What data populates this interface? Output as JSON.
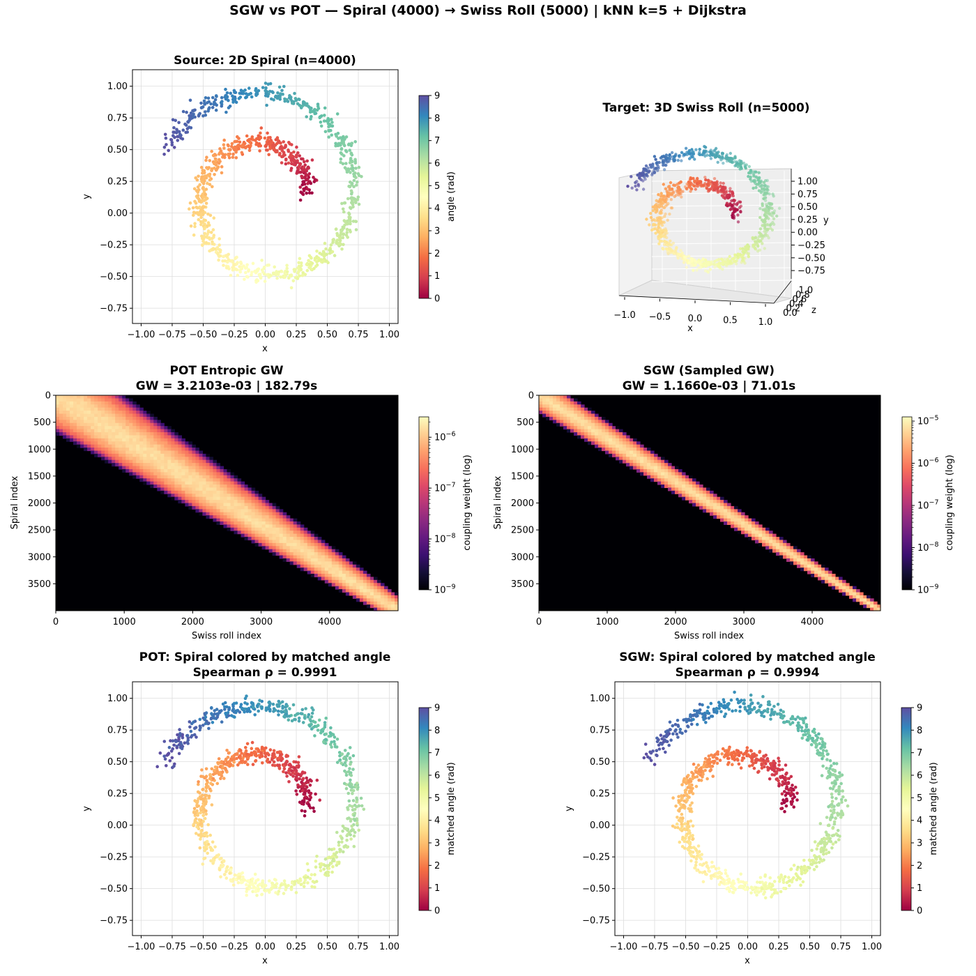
{
  "figure": {
    "suptitle": "SGW vs POT  —  Spiral (4000) → Swiss Roll (5000)  |  kNN k=5 + Dijkstra"
  },
  "colors": {
    "background": "#ffffff",
    "grid": "#dddddd",
    "heatmap_bg": "#000004"
  },
  "chart_data": [
    {
      "id": "source",
      "type": "scatter",
      "title": "Source: 2D Spiral  (n=4000)",
      "xlabel": "x",
      "ylabel": "y",
      "xlim": [
        -1.07,
        1.07
      ],
      "ylim": [
        -0.87,
        1.13
      ],
      "xticks": [
        -1.0,
        -0.75,
        -0.5,
        -0.25,
        0.0,
        0.25,
        0.5,
        0.75,
        1.0
      ],
      "xtick_labels": [
        "−1.00",
        "−0.75",
        "−0.50",
        "−0.25",
        "0.00",
        "0.25",
        "0.50",
        "0.75",
        "1.00"
      ],
      "yticks": [
        -0.75,
        -0.5,
        -0.25,
        0.0,
        0.25,
        0.5,
        0.75,
        1.0
      ],
      "ytick_labels": [
        "−0.75",
        "−0.50",
        "−0.25",
        "0.00",
        "0.25",
        "0.50",
        "0.75",
        "1.00"
      ],
      "spiral": {
        "n": 4000,
        "angle_range": [
          0,
          9
        ],
        "center": [
          0.0,
          0.13
        ],
        "radius_start": 0.33,
        "radius_end": 0.88,
        "noise": 0.035
      },
      "colorbar": {
        "label": "angle (rad)",
        "range": [
          0,
          9
        ],
        "ticks": [
          "0",
          "1",
          "2",
          "3",
          "4",
          "5",
          "6",
          "7",
          "8",
          "9"
        ],
        "cmap": "Spectral"
      }
    },
    {
      "id": "target",
      "type": "scatter3d",
      "title": "Target: 3D Swiss Roll  (n=5000)",
      "xlabel": "x",
      "ylabel": "y",
      "zlabel": "z",
      "xtick_labels": [
        "−1.0",
        "−0.5",
        "0.0",
        "0.5",
        "1.0"
      ],
      "ytick_labels": [
        "1.00",
        "0.75",
        "0.50",
        "0.25",
        "0.00",
        "−0.25",
        "−0.50",
        "−0.75"
      ],
      "ztick_labels": [
        "0.0",
        "0.2",
        "0.4",
        "0.6",
        "0.8",
        "1.0"
      ],
      "spiral": {
        "n": 5000,
        "angle_range": [
          0,
          9
        ],
        "cmap": "Spectral"
      }
    },
    {
      "id": "pot_heat",
      "type": "heatmap",
      "title_line1": "POT Entropic GW",
      "title_line2": "GW = 3.2103e-03  |  182.79s",
      "xlabel": "Swiss roll index",
      "ylabel": "Spiral index",
      "xlim": [
        0,
        5000
      ],
      "ylim": [
        0,
        4000
      ],
      "xticks": [
        0,
        1000,
        2000,
        3000,
        4000
      ],
      "yticks": [
        0,
        500,
        1000,
        1500,
        2000,
        2500,
        3000,
        3500
      ],
      "band": {
        "width_start": 0.16,
        "width_end": 0.05
      },
      "colorbar": {
        "label": "coupling weight (log)",
        "log_range": [
          -9,
          -5.6
        ],
        "ticks_exp": [
          "−9",
          "−8",
          "−7",
          "−6"
        ],
        "cmap": "magma"
      }
    },
    {
      "id": "sgw_heat",
      "type": "heatmap",
      "title_line1": "SGW (Sampled GW)",
      "title_line2": "GW = 1.1660e-03  |  71.01s",
      "xlabel": "Swiss roll index",
      "ylabel": "Spiral index",
      "xlim": [
        0,
        5000
      ],
      "ylim": [
        0,
        4000
      ],
      "xticks": [
        0,
        1000,
        2000,
        3000,
        4000
      ],
      "yticks": [
        0,
        500,
        1000,
        1500,
        2000,
        2500,
        3000,
        3500
      ],
      "band": {
        "width_start": 0.07,
        "width_end": 0.02
      },
      "colorbar": {
        "label": "coupling weight (log)",
        "log_range": [
          -9,
          -4.9
        ],
        "ticks_exp": [
          "−9",
          "−8",
          "−7",
          "−6",
          "−5"
        ],
        "cmap": "magma"
      }
    },
    {
      "id": "pot_match",
      "type": "scatter",
      "title_line1": "POT: Spiral colored by matched angle",
      "title_line2": "Spearman ρ = 0.9991",
      "xlabel": "x",
      "ylabel": "y",
      "xlim": [
        -1.07,
        1.07
      ],
      "ylim": [
        -0.87,
        1.13
      ],
      "xticks": [
        -1.0,
        -0.75,
        -0.5,
        -0.25,
        0.0,
        0.25,
        0.5,
        0.75,
        1.0
      ],
      "xtick_labels": [
        "−1.00",
        "−0.75",
        "−0.50",
        "−0.25",
        "0.00",
        "0.25",
        "0.50",
        "0.75",
        "1.00"
      ],
      "yticks": [
        -0.75,
        -0.5,
        -0.25,
        0.0,
        0.25,
        0.5,
        0.75,
        1.0
      ],
      "ytick_labels": [
        "−0.75",
        "−0.50",
        "−0.25",
        "0.00",
        "0.25",
        "0.50",
        "0.75",
        "1.00"
      ],
      "spiral": {
        "n": 4000,
        "angle_range": [
          0,
          9
        ],
        "center": [
          0.0,
          0.13
        ],
        "radius_start": 0.33,
        "radius_end": 0.88,
        "noise": 0.035
      },
      "colorbar": {
        "label": "matched angle (rad)",
        "range": [
          0,
          9
        ],
        "ticks": [
          "0",
          "1",
          "2",
          "3",
          "4",
          "5",
          "6",
          "7",
          "8",
          "9"
        ],
        "cmap": "Spectral"
      }
    },
    {
      "id": "sgw_match",
      "type": "scatter",
      "title_line1": "SGW: Spiral colored by matched angle",
      "title_line2": "Spearman ρ = 0.9994",
      "xlabel": "x",
      "ylabel": "y",
      "xlim": [
        -1.07,
        1.07
      ],
      "ylim": [
        -0.87,
        1.13
      ],
      "xticks": [
        -1.0,
        -0.75,
        -0.5,
        -0.25,
        0.0,
        0.25,
        0.5,
        0.75,
        1.0
      ],
      "xtick_labels": [
        "−1.00",
        "−0.75",
        "−0.50",
        "−0.25",
        "0.00",
        "0.25",
        "0.50",
        "0.75",
        "1.00"
      ],
      "yticks": [
        -0.75,
        -0.5,
        -0.25,
        0.0,
        0.25,
        0.5,
        0.75,
        1.0
      ],
      "ytick_labels": [
        "−0.75",
        "−0.50",
        "−0.25",
        "0.00",
        "0.25",
        "0.50",
        "0.75",
        "1.00"
      ],
      "spiral": {
        "n": 4000,
        "angle_range": [
          0,
          9
        ],
        "center": [
          0.0,
          0.13
        ],
        "radius_start": 0.33,
        "radius_end": 0.88,
        "noise": 0.035
      },
      "colorbar": {
        "label": "matched angle (rad)",
        "range": [
          0,
          9
        ],
        "ticks": [
          "0",
          "1",
          "2",
          "3",
          "4",
          "5",
          "6",
          "7",
          "8",
          "9"
        ],
        "cmap": "Spectral"
      }
    }
  ]
}
